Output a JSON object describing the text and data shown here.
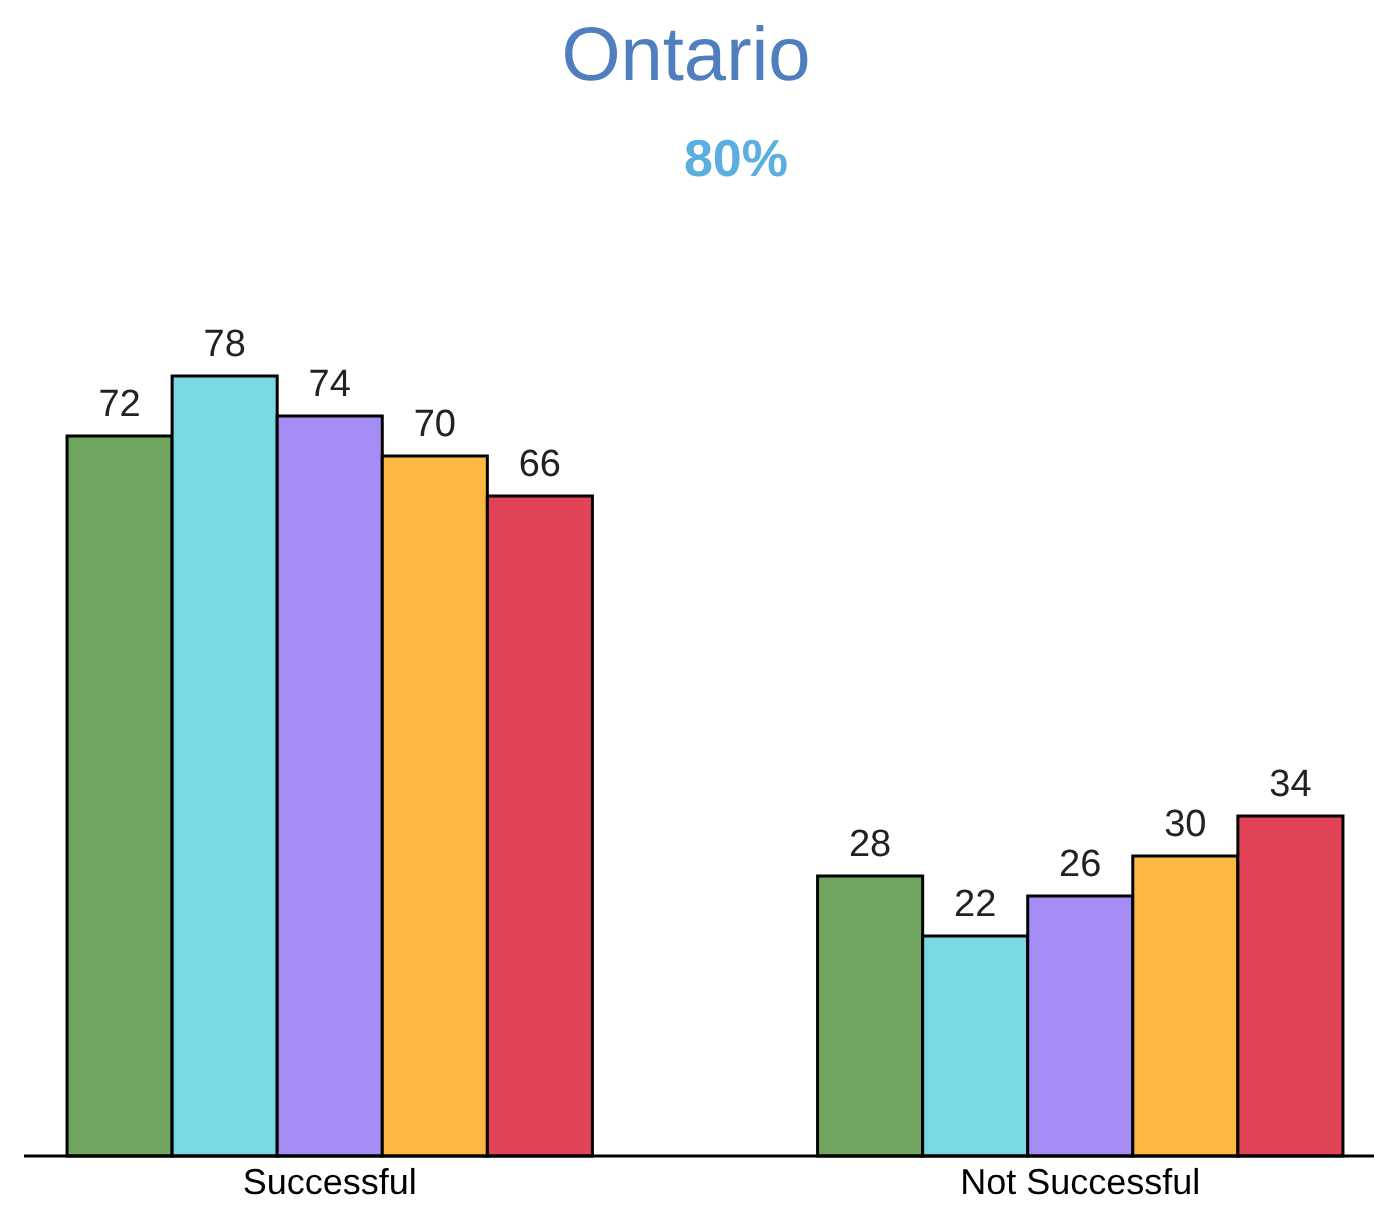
{
  "chart_data": {
    "type": "bar",
    "title": "Ontario",
    "subtitle": "80%",
    "categories": [
      "Successful",
      "Not Successful"
    ],
    "series": [
      {
        "color": "#6fa55f",
        "values": [
          72,
          28
        ]
      },
      {
        "color": "#79d8e4",
        "values": [
          78,
          22
        ]
      },
      {
        "color": "#a68cf5",
        "values": [
          74,
          26
        ]
      },
      {
        "color": "#fdb844",
        "values": [
          70,
          30
        ]
      },
      {
        "color": "#e14357",
        "values": [
          66,
          34
        ]
      }
    ],
    "data_labels": true
  }
}
